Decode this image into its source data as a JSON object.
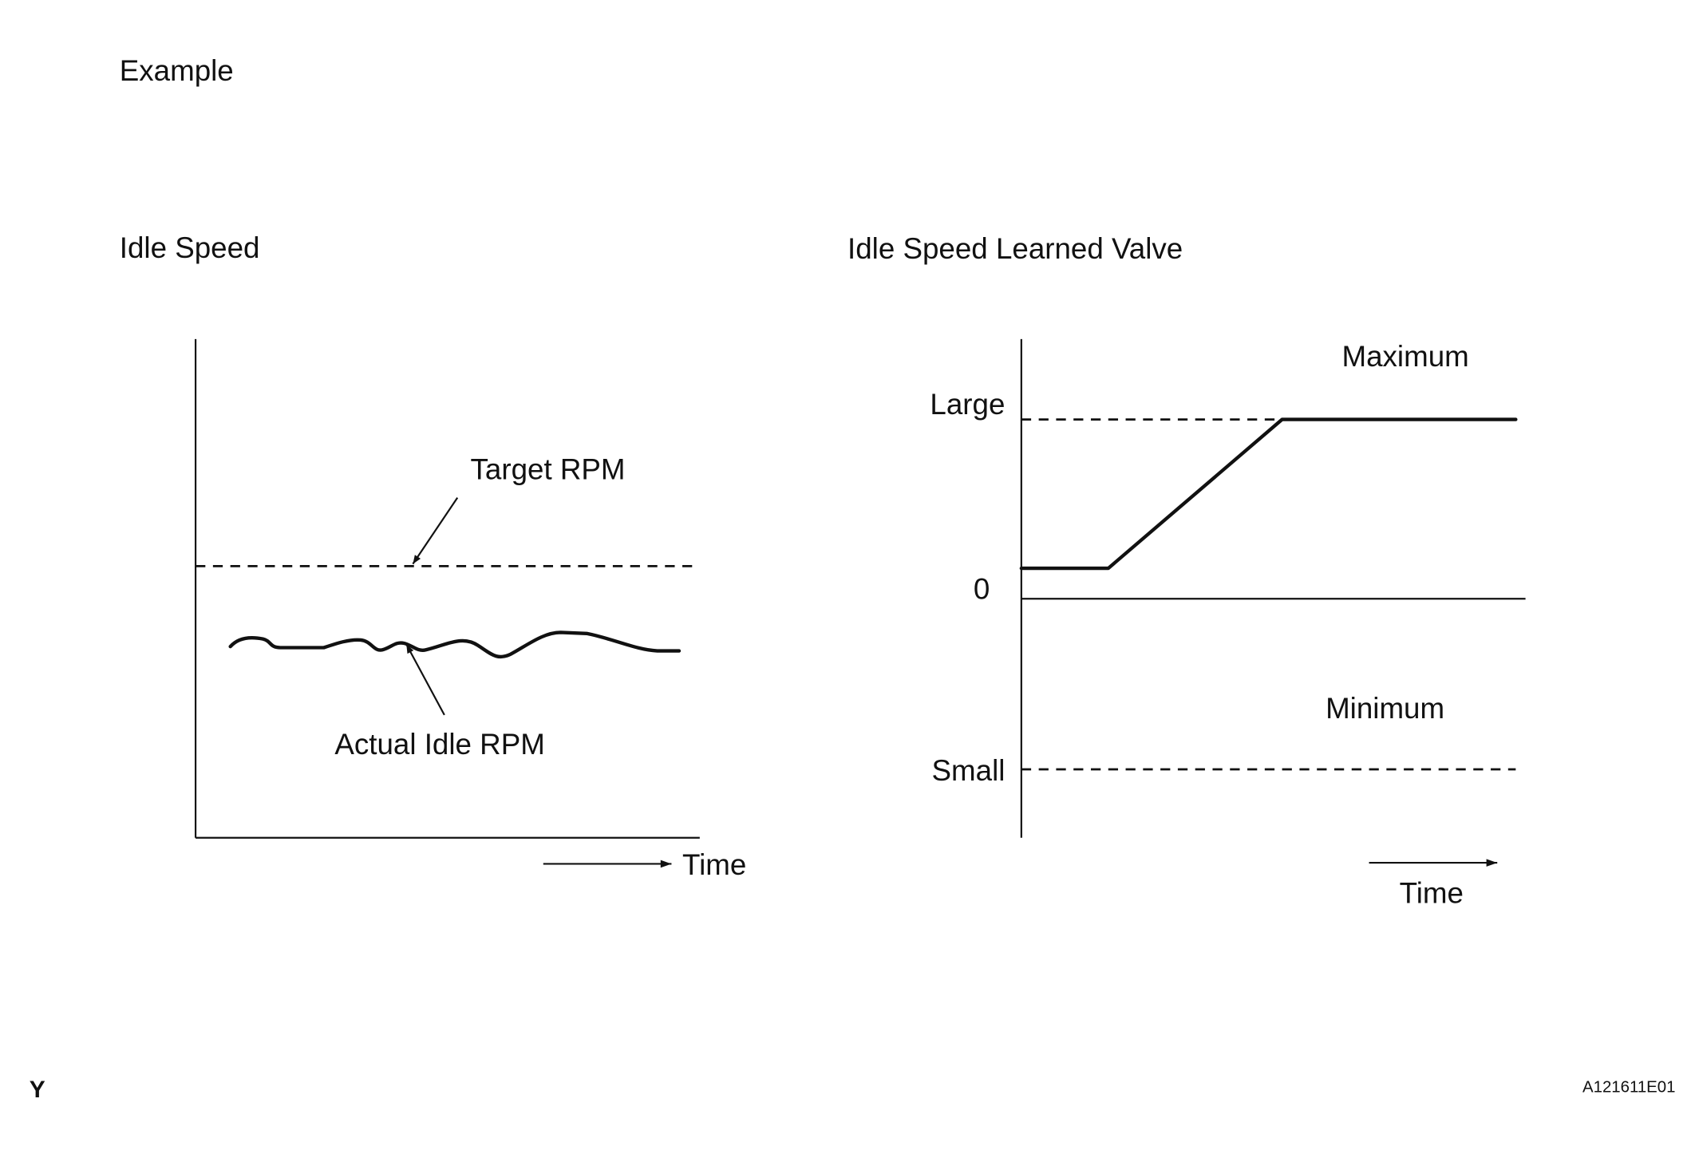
{
  "header": {
    "title": "Example"
  },
  "diagrams": [
    {
      "title": "Idle Speed",
      "labels": {
        "target": "Target RPM",
        "actual": "Actual Idle RPM",
        "x_axis": "Time"
      }
    },
    {
      "title": "Idle Speed Learned Valve",
      "labels": {
        "maximum": "Maximum",
        "large": "Large",
        "zero": "0",
        "minimum": "Minimum",
        "small": "Small",
        "x_axis": "Time"
      }
    }
  ],
  "footer": {
    "left": "Y",
    "right": "A121611E01"
  }
}
